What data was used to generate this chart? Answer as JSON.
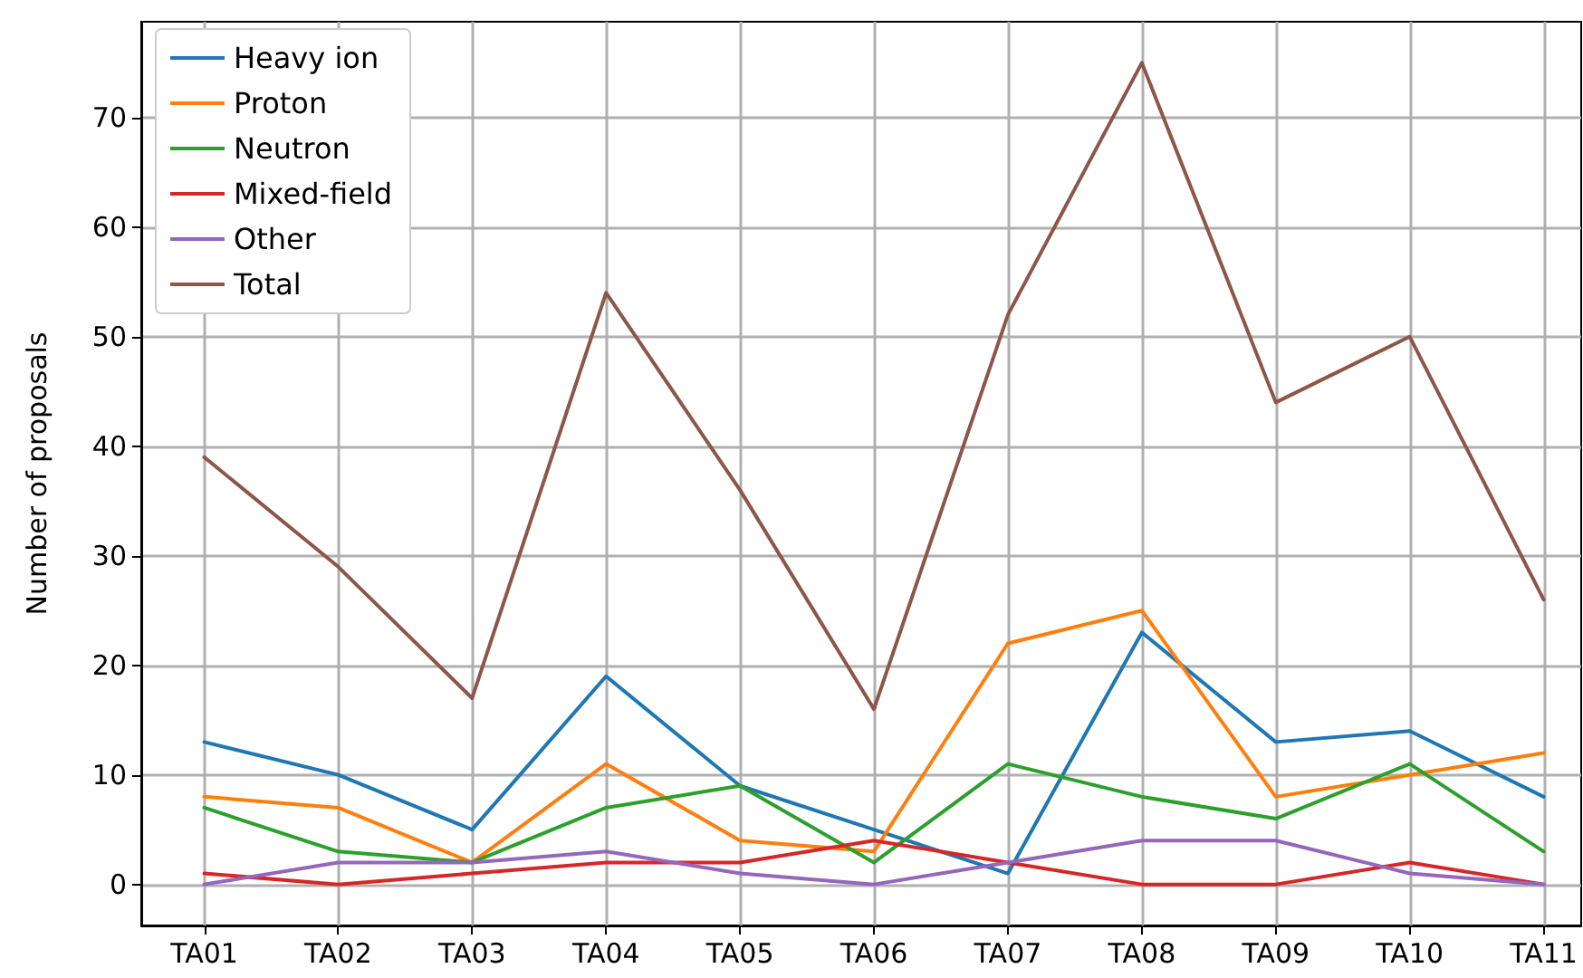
{
  "chart_data": {
    "type": "line",
    "ylabel": "Number of proposals",
    "categories": [
      "TA01",
      "TA02",
      "TA03",
      "TA04",
      "TA05",
      "TA06",
      "TA07",
      "TA08",
      "TA09",
      "TA10",
      "TA11"
    ],
    "series": [
      {
        "name": "Heavy ion",
        "color": "#1f77b4",
        "values": [
          13,
          10,
          5,
          19,
          9,
          5,
          1,
          23,
          13,
          14,
          8
        ]
      },
      {
        "name": "Proton",
        "color": "#ff7f0e",
        "values": [
          8,
          7,
          2,
          11,
          4,
          3,
          22,
          25,
          8,
          10,
          12
        ]
      },
      {
        "name": "Neutron",
        "color": "#2ca02c",
        "values": [
          7,
          3,
          2,
          7,
          9,
          2,
          11,
          8,
          6,
          11,
          3
        ]
      },
      {
        "name": "Mixed-field",
        "color": "#d62728",
        "values": [
          1,
          0,
          1,
          2,
          2,
          4,
          2,
          0,
          0,
          2,
          0
        ]
      },
      {
        "name": "Other",
        "color": "#9467bd",
        "values": [
          0,
          2,
          2,
          3,
          1,
          0,
          2,
          4,
          4,
          1,
          0
        ]
      },
      {
        "name": "Total",
        "color": "#8c564b",
        "values": [
          39,
          29,
          17,
          54,
          36,
          16,
          52,
          75,
          44,
          50,
          26
        ]
      }
    ],
    "ylim": [
      -3.75,
      78.75
    ],
    "yticks": [
      0,
      10,
      20,
      30,
      40,
      50,
      60,
      70
    ],
    "grid": true,
    "legend": "top left",
    "marker": "none",
    "line_style": "solid"
  }
}
